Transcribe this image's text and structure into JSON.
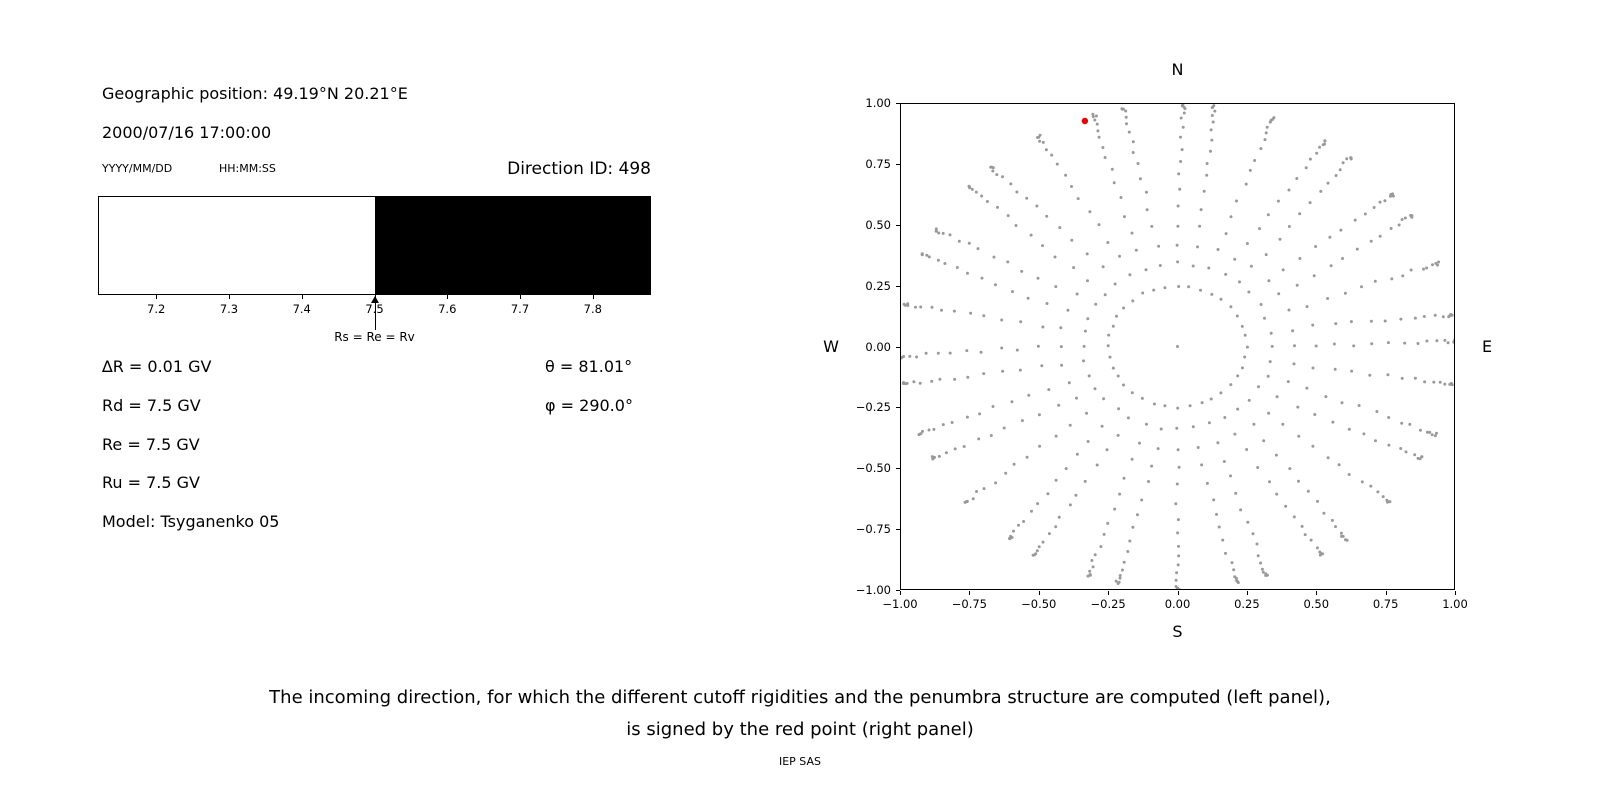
{
  "left_panel": {
    "geo_position": "Geographic position: 49.19°N 20.21°E",
    "datetime": "2000/07/16 17:00:00",
    "date_format_label": "YYYY/MM/DD",
    "time_format_label": "HH:MM:SS",
    "direction_id": "Direction ID: 498",
    "params": [
      "∆R = 0.01 GV",
      "Rd = 7.5 GV",
      "Re = 7.5 GV",
      "Ru = 7.5 GV",
      "Model: Tsyganenko 05"
    ],
    "angles": [
      "θ = 81.01°",
      "φ = 290.0°"
    ]
  },
  "caption": {
    "line1": "The incoming direction, for which the different cutoff rigidities and the penumbra structure are computed (left panel),",
    "line2": "is signed by the red point (right panel)",
    "credit": "IEP SAS"
  },
  "chart_data": [
    {
      "id": "penumbra-spectrum",
      "type": "area",
      "title": "",
      "xlabel": "",
      "ylabel": "",
      "xlim": [
        7.12,
        7.88
      ],
      "xticks": [
        {
          "v": 7.2,
          "label": "7.2"
        },
        {
          "v": 7.3,
          "label": "7.3"
        },
        {
          "v": 7.4,
          "label": "7.4"
        },
        {
          "v": 7.5,
          "label": "7.5"
        },
        {
          "v": 7.6,
          "label": "7.6"
        },
        {
          "v": 7.7,
          "label": "7.7"
        },
        {
          "v": 7.8,
          "label": "7.8"
        }
      ],
      "regions": [
        {
          "name": "allowed-region",
          "from": 7.12,
          "to": 7.5,
          "color": "#ffffff"
        },
        {
          "name": "forbidden-region",
          "from": 7.5,
          "to": 7.88,
          "color": "#000000"
        }
      ],
      "annotation": {
        "x": 7.5,
        "label": "Rs = Re = Rv"
      }
    },
    {
      "id": "asymptotic-direction-map",
      "type": "scatter",
      "title": "",
      "xlim": [
        -1,
        1
      ],
      "ylim": [
        -1,
        1
      ],
      "grid": false,
      "compass": {
        "top": "N",
        "bottom": "S",
        "left": "W",
        "right": "E"
      },
      "xticks": [
        {
          "v": -1.0,
          "label": "−1.00"
        },
        {
          "v": -0.75,
          "label": "−0.75"
        },
        {
          "v": -0.5,
          "label": "−0.50"
        },
        {
          "v": -0.25,
          "label": "−0.25"
        },
        {
          "v": 0.0,
          "label": "0.00"
        },
        {
          "v": 0.25,
          "label": "0.25"
        },
        {
          "v": 0.5,
          "label": "0.50"
        },
        {
          "v": 0.75,
          "label": "0.75"
        },
        {
          "v": 1.0,
          "label": "1.00"
        }
      ],
      "yticks": [
        {
          "v": 1.0,
          "label": "1.00"
        },
        {
          "v": 0.75,
          "label": "0.75"
        },
        {
          "v": 0.5,
          "label": "0.50"
        },
        {
          "v": 0.25,
          "label": "0.25"
        },
        {
          "v": 0.0,
          "label": "0.00"
        },
        {
          "v": -0.25,
          "label": "−0.25"
        },
        {
          "v": -0.5,
          "label": "−0.50"
        },
        {
          "v": -0.75,
          "label": "−0.75"
        },
        {
          "v": -1.0,
          "label": "−1.00"
        }
      ],
      "gray_dots": {
        "description": "36 radial rays of dots (directions grid), radius = sin(zenith), plus inner ring and center dot",
        "ray_azimuth_start_deg": 0,
        "ray_azimuth_step_deg": 10,
        "ray_count": 36,
        "ray_zenith_deg": [
          20,
          25,
          30,
          35,
          40,
          45,
          50,
          55,
          60,
          65,
          70,
          75,
          80,
          84,
          87,
          89
        ],
        "inner_ring_radius": 0.25,
        "inner_ring_count": 36,
        "center_dot": true,
        "color": "#999999",
        "dot_radius_px": 1.5,
        "jitter": 0.014
      },
      "red_point": {
        "x": -0.335,
        "y": 0.93,
        "color": "#ee0000",
        "dot_radius_px": 3.2
      }
    }
  ]
}
